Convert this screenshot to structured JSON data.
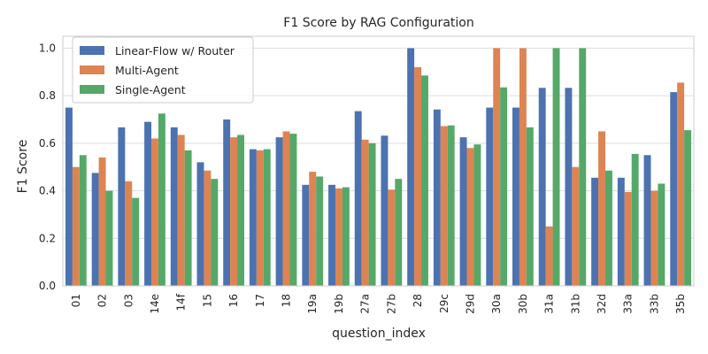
{
  "chart_data": {
    "type": "bar",
    "title": "F1 Score by RAG Configuration",
    "xlabel": "question_index",
    "ylabel": "F1 Score",
    "ylim": [
      0,
      1.05
    ],
    "yticks": [
      "0.0",
      "0.2",
      "0.4",
      "0.6",
      "0.8",
      "1.0"
    ],
    "grid": "horizontal",
    "legend_position": "top-left",
    "categories": [
      "01",
      "02",
      "03",
      "14e",
      "14f",
      "15",
      "16",
      "17",
      "18",
      "19a",
      "19b",
      "27a",
      "27b",
      "28",
      "29c",
      "29d",
      "30a",
      "30b",
      "31a",
      "31b",
      "32d",
      "33a",
      "33b",
      "35b"
    ],
    "series": [
      {
        "name": "Linear-Flow w/ Router",
        "color": "#4c72b0",
        "values": [
          0.75,
          0.475,
          0.667,
          0.69,
          0.667,
          0.52,
          0.7,
          0.575,
          0.625,
          0.425,
          0.425,
          0.735,
          0.632,
          1.0,
          0.742,
          0.625,
          0.75,
          0.75,
          0.833,
          0.833,
          0.455,
          0.455,
          0.55,
          0.815
        ]
      },
      {
        "name": "Multi-Agent",
        "color": "#dd8452",
        "values": [
          0.5,
          0.54,
          0.44,
          0.62,
          0.635,
          0.485,
          0.625,
          0.57,
          0.65,
          0.48,
          0.41,
          0.615,
          0.405,
          0.92,
          0.672,
          0.58,
          1.0,
          1.0,
          0.25,
          0.5,
          0.65,
          0.395,
          0.4,
          0.855
        ]
      },
      {
        "name": "Single-Agent",
        "color": "#55a868",
        "values": [
          0.55,
          0.4,
          0.37,
          0.725,
          0.57,
          0.45,
          0.635,
          0.575,
          0.64,
          0.46,
          0.415,
          0.6,
          0.45,
          0.885,
          0.675,
          0.595,
          0.835,
          0.667,
          1.0,
          1.0,
          0.485,
          0.555,
          0.43,
          0.655
        ]
      }
    ]
  }
}
